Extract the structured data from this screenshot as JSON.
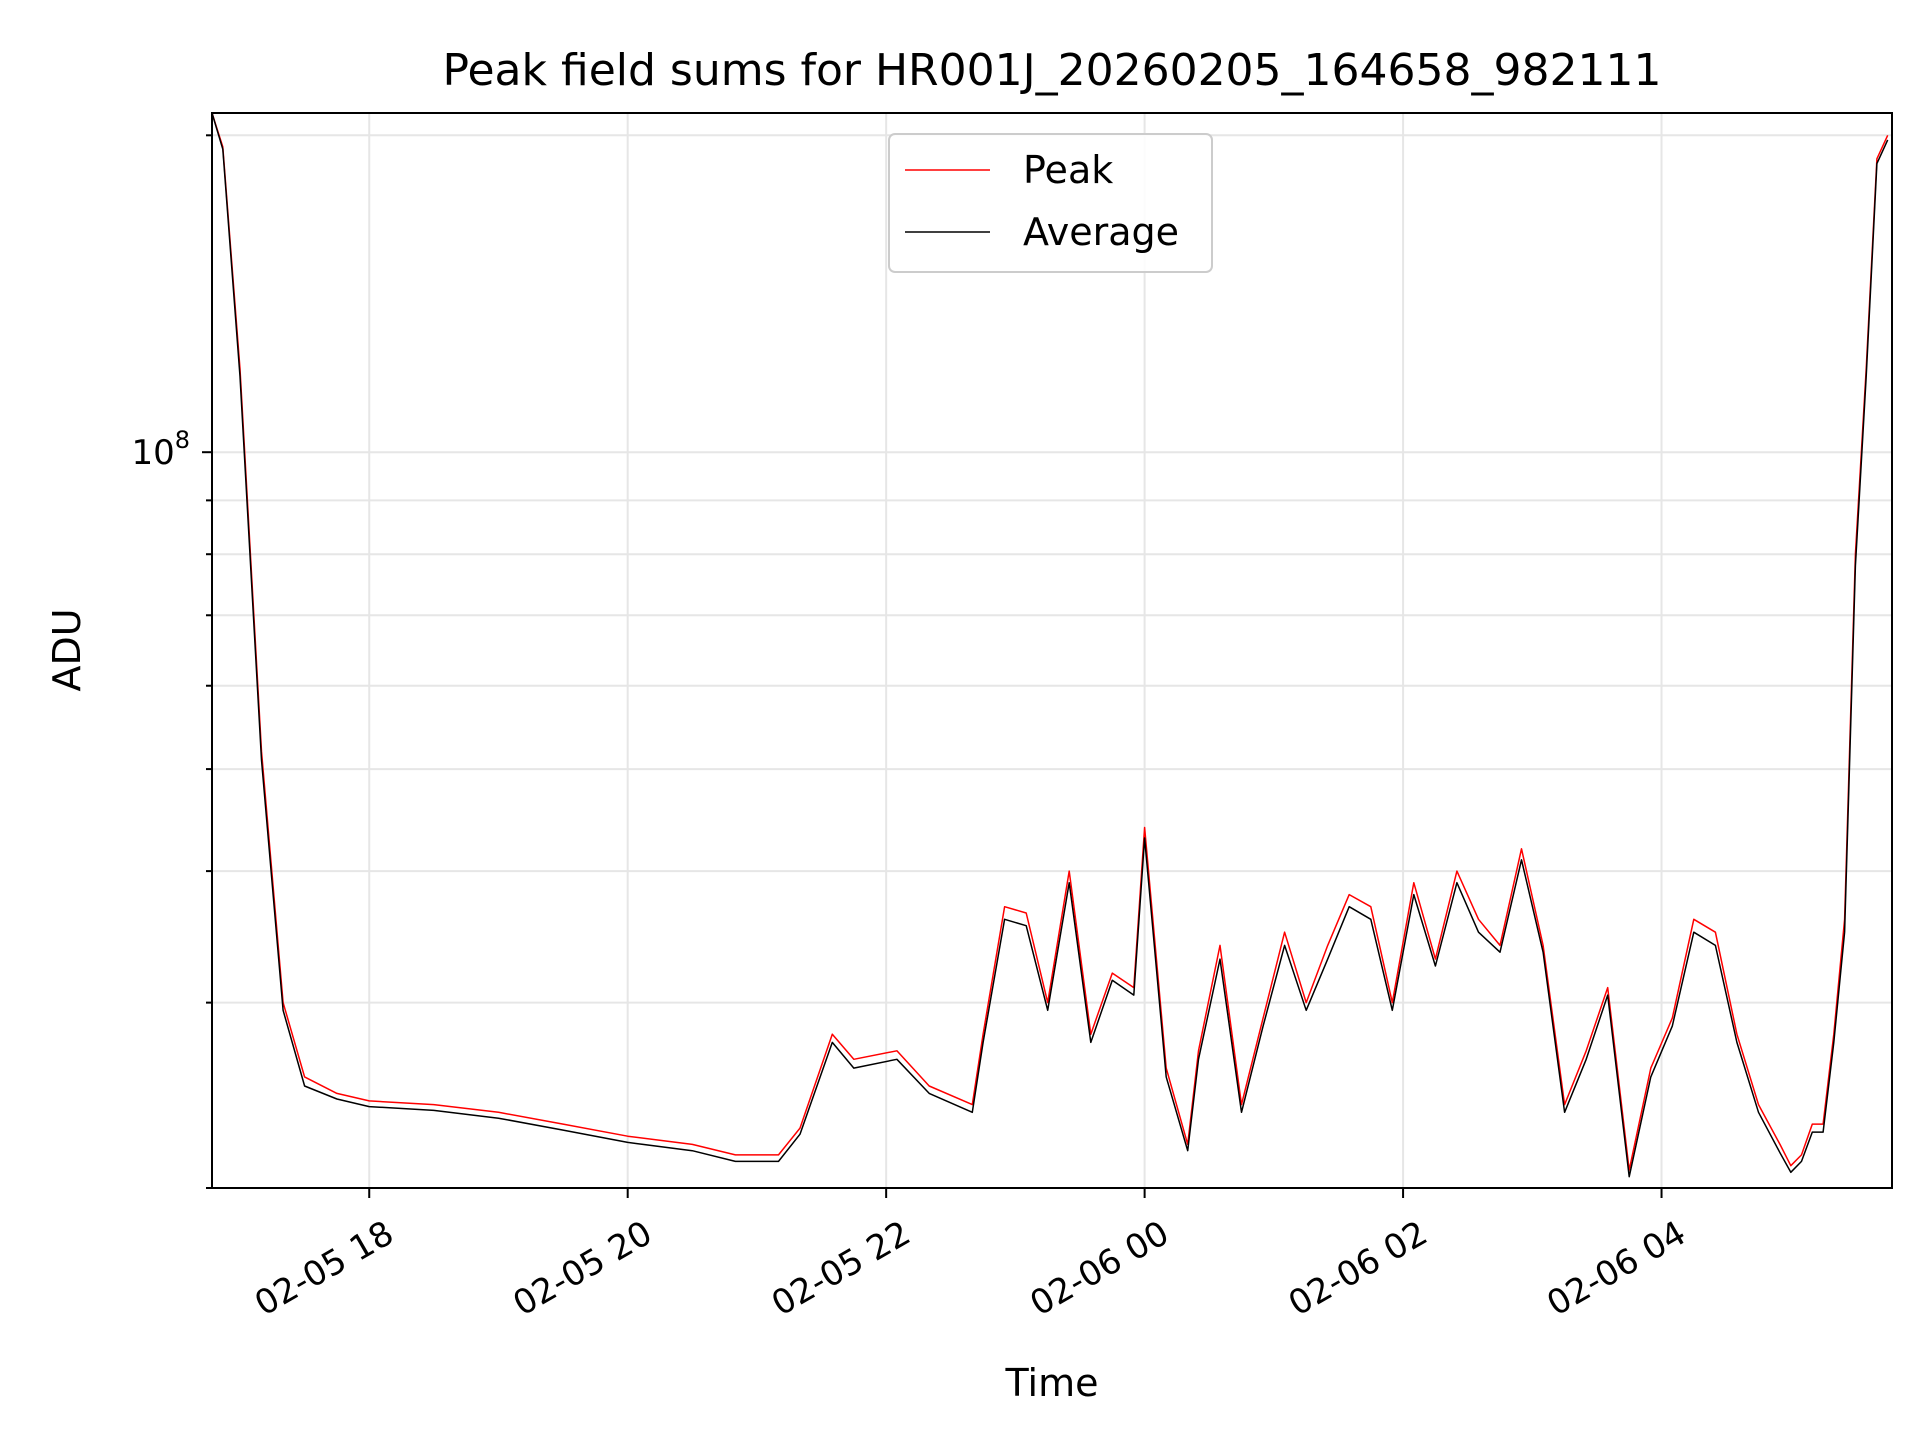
{
  "chart_data": {
    "type": "line",
    "title": "Peak field sums for HR001J_20260205_164658_982111",
    "xlabel": "Time",
    "ylabel": "ADU",
    "yscale": "log",
    "ylim": [
      20000000,
      210000000
    ],
    "xlim": [
      "2026-02-05 16:47",
      "2026-02-06 05:47"
    ],
    "xticks": [
      {
        "t": "2026-02-05 18:00",
        "label": "02-05 18"
      },
      {
        "t": "2026-02-05 20:00",
        "label": "02-05 20"
      },
      {
        "t": "2026-02-05 22:00",
        "label": "02-05 22"
      },
      {
        "t": "2026-02-06 00:00",
        "label": "02-06 00"
      },
      {
        "t": "2026-02-06 02:00",
        "label": "02-06 02"
      },
      {
        "t": "2026-02-06 04:00",
        "label": "02-06 04"
      }
    ],
    "ytick_label_base": "10",
    "ytick_label_exp": "8",
    "ytick_value": 100000000,
    "grid": true,
    "legend_position": "top-center",
    "series": [
      {
        "name": "Peak",
        "color": "#ff0000",
        "x": [
          "2026-02-05 16:47",
          "2026-02-05 16:52",
          "2026-02-05 17:00",
          "2026-02-05 17:10",
          "2026-02-05 17:20",
          "2026-02-05 17:30",
          "2026-02-05 17:45",
          "2026-02-05 18:00",
          "2026-02-05 18:30",
          "2026-02-05 19:00",
          "2026-02-05 19:30",
          "2026-02-05 20:00",
          "2026-02-05 20:30",
          "2026-02-05 20:50",
          "2026-02-05 21:10",
          "2026-02-05 21:20",
          "2026-02-05 21:35",
          "2026-02-05 21:45",
          "2026-02-05 22:05",
          "2026-02-05 22:20",
          "2026-02-05 22:40",
          "2026-02-05 22:45",
          "2026-02-05 22:55",
          "2026-02-05 23:05",
          "2026-02-05 23:15",
          "2026-02-05 23:25",
          "2026-02-05 23:35",
          "2026-02-05 23:45",
          "2026-02-05 23:55",
          "2026-02-06 00:00",
          "2026-02-06 00:10",
          "2026-02-06 00:20",
          "2026-02-06 00:25",
          "2026-02-06 00:35",
          "2026-02-06 00:45",
          "2026-02-06 00:55",
          "2026-02-06 01:05",
          "2026-02-06 01:15",
          "2026-02-06 01:25",
          "2026-02-06 01:35",
          "2026-02-06 01:45",
          "2026-02-06 01:55",
          "2026-02-06 02:05",
          "2026-02-06 02:15",
          "2026-02-06 02:25",
          "2026-02-06 02:35",
          "2026-02-06 02:45",
          "2026-02-06 02:55",
          "2026-02-06 03:05",
          "2026-02-06 03:15",
          "2026-02-06 03:25",
          "2026-02-06 03:35",
          "2026-02-06 03:45",
          "2026-02-06 03:55",
          "2026-02-06 04:05",
          "2026-02-06 04:15",
          "2026-02-06 04:25",
          "2026-02-06 04:35",
          "2026-02-06 04:45",
          "2026-02-06 04:55",
          "2026-02-06 05:00",
          "2026-02-06 05:05",
          "2026-02-06 05:10",
          "2026-02-06 05:15",
          "2026-02-06 05:20",
          "2026-02-06 05:25",
          "2026-02-06 05:30",
          "2026-02-06 05:35",
          "2026-02-06 05:40",
          "2026-02-06 05:45"
        ],
        "y": [
          210000000,
          195000000,
          120000000,
          52000000,
          30000000,
          25500000,
          24600000,
          24200000,
          24000000,
          23600000,
          23000000,
          22400000,
          22000000,
          21500000,
          21500000,
          22800000,
          28000000,
          26500000,
          27000000,
          25000000,
          24000000,
          28000000,
          37000000,
          36500000,
          30000000,
          40000000,
          28000000,
          32000000,
          31000000,
          44000000,
          26000000,
          22000000,
          27000000,
          34000000,
          24000000,
          29000000,
          35000000,
          30000000,
          34000000,
          38000000,
          37000000,
          30000000,
          39000000,
          33000000,
          40000000,
          36000000,
          34000000,
          42000000,
          34000000,
          24000000,
          27000000,
          31000000,
          20800000,
          26000000,
          29000000,
          36000000,
          35000000,
          28000000,
          24000000,
          22000000,
          21000000,
          21500000,
          23000000,
          23000000,
          28000000,
          36000000,
          80000000,
          120000000,
          190000000,
          200000000
        ]
      },
      {
        "name": "Average",
        "color": "#000000",
        "x": [
          "2026-02-05 16:47",
          "2026-02-05 16:52",
          "2026-02-05 17:00",
          "2026-02-05 17:10",
          "2026-02-05 17:20",
          "2026-02-05 17:30",
          "2026-02-05 17:45",
          "2026-02-05 18:00",
          "2026-02-05 18:30",
          "2026-02-05 19:00",
          "2026-02-05 19:30",
          "2026-02-05 20:00",
          "2026-02-05 20:30",
          "2026-02-05 20:50",
          "2026-02-05 21:10",
          "2026-02-05 21:20",
          "2026-02-05 21:35",
          "2026-02-05 21:45",
          "2026-02-05 22:05",
          "2026-02-05 22:20",
          "2026-02-05 22:40",
          "2026-02-05 22:45",
          "2026-02-05 22:55",
          "2026-02-05 23:05",
          "2026-02-05 23:15",
          "2026-02-05 23:25",
          "2026-02-05 23:35",
          "2026-02-05 23:45",
          "2026-02-05 23:55",
          "2026-02-06 00:00",
          "2026-02-06 00:10",
          "2026-02-06 00:20",
          "2026-02-06 00:25",
          "2026-02-06 00:35",
          "2026-02-06 00:45",
          "2026-02-06 00:55",
          "2026-02-06 01:05",
          "2026-02-06 01:15",
          "2026-02-06 01:25",
          "2026-02-06 01:35",
          "2026-02-06 01:45",
          "2026-02-06 01:55",
          "2026-02-06 02:05",
          "2026-02-06 02:15",
          "2026-02-06 02:25",
          "2026-02-06 02:35",
          "2026-02-06 02:45",
          "2026-02-06 02:55",
          "2026-02-06 03:05",
          "2026-02-06 03:15",
          "2026-02-06 03:25",
          "2026-02-06 03:35",
          "2026-02-06 03:45",
          "2026-02-06 03:55",
          "2026-02-06 04:05",
          "2026-02-06 04:15",
          "2026-02-06 04:25",
          "2026-02-06 04:35",
          "2026-02-06 04:45",
          "2026-02-06 04:55",
          "2026-02-06 05:00",
          "2026-02-06 05:05",
          "2026-02-06 05:10",
          "2026-02-06 05:15",
          "2026-02-06 05:20",
          "2026-02-06 05:25",
          "2026-02-06 05:30",
          "2026-02-06 05:35",
          "2026-02-06 05:40",
          "2026-02-06 05:45"
        ],
        "y": [
          210000000,
          194000000,
          118000000,
          51000000,
          29500000,
          25000000,
          24300000,
          23900000,
          23700000,
          23300000,
          22700000,
          22100000,
          21700000,
          21200000,
          21200000,
          22500000,
          27500000,
          26000000,
          26500000,
          24600000,
          23600000,
          27500000,
          36000000,
          35500000,
          29500000,
          39000000,
          27500000,
          31500000,
          30500000,
          43000000,
          25500000,
          21700000,
          26500000,
          33000000,
          23600000,
          28500000,
          34000000,
          29500000,
          33000000,
          37000000,
          36000000,
          29500000,
          38000000,
          32500000,
          39000000,
          35000000,
          33500000,
          41000000,
          33500000,
          23600000,
          26500000,
          30500000,
          20500000,
          25500000,
          28500000,
          35000000,
          34000000,
          27500000,
          23600000,
          21600000,
          20700000,
          21200000,
          22600000,
          22600000,
          27500000,
          35000000,
          78000000,
          118000000,
          188000000,
          198000000
        ]
      }
    ]
  }
}
